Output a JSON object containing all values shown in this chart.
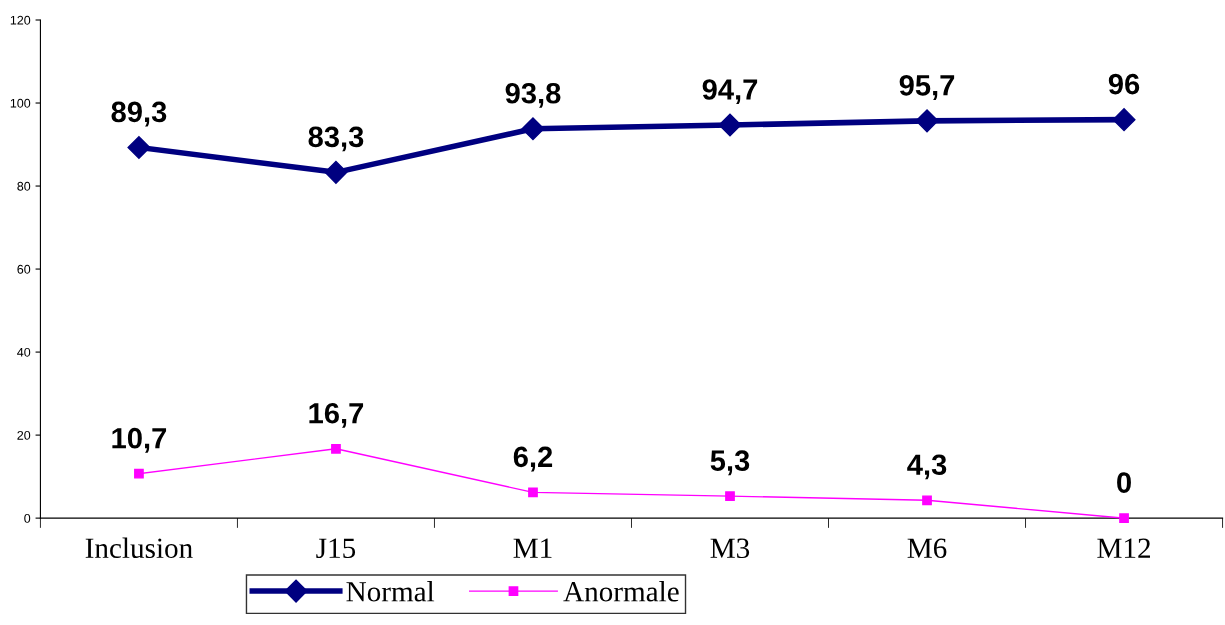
{
  "chart_data": {
    "type": "line",
    "categories": [
      "Inclusion",
      "J15",
      "M1",
      "M3",
      "M6",
      "M12"
    ],
    "series": [
      {
        "name": "Normal",
        "color": "#000080",
        "values": [
          89.3,
          83.3,
          93.8,
          94.7,
          95.7,
          96
        ],
        "marker": "diamond",
        "value_labels": [
          "89,3",
          "83,3",
          "93,8",
          "94,7",
          "95,7",
          "96"
        ]
      },
      {
        "name": "Anormale",
        "color": "#ff00ff",
        "values": [
          10.7,
          16.7,
          6.2,
          5.3,
          4.3,
          0
        ],
        "marker": "square",
        "value_labels": [
          "10,7",
          "16,7",
          "6,2",
          "5,3",
          "4,3",
          "0"
        ]
      }
    ],
    "ylim": [
      0,
      120
    ],
    "yticks": [
      0,
      20,
      40,
      60,
      80,
      100,
      120
    ],
    "grid": false,
    "legend": "bottom",
    "line_style": "solid"
  }
}
